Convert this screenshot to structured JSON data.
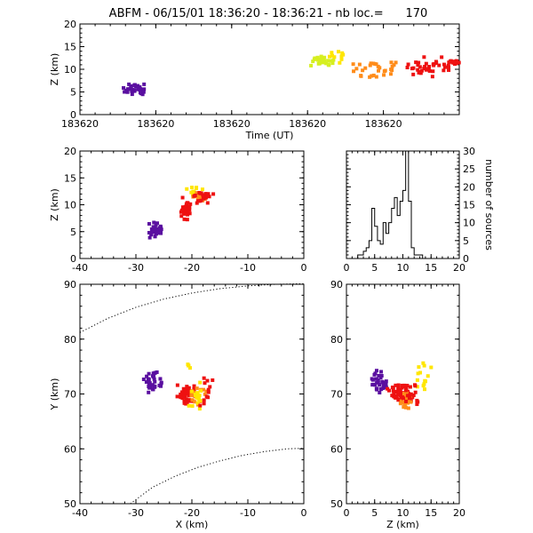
{
  "title": "ABFM - 06/15/01 18:36:20 - 18:36:21 - nb loc.=      170",
  "colors": {
    "purple": "#5a0fa0",
    "red": "#ee1111",
    "orange": "#ff8c1a",
    "yellow": "#ffe600",
    "yellowgreen": "#d6ef20",
    "line": "#000000"
  },
  "chart_data": [
    {
      "id": "time_height",
      "type": "scatter",
      "xlabel": "Time (UT)",
      "ylabel": "Z (km)",
      "xlim": [
        0,
        1
      ],
      "ylim": [
        0,
        20
      ],
      "xticks": [
        0,
        0.2,
        0.4,
        0.6,
        0.8
      ],
      "xtick_labels": [
        "183620",
        "183620",
        "183620",
        "183620",
        "183620"
      ],
      "yticks": [
        0,
        5,
        10,
        15,
        20
      ],
      "clusters": [
        {
          "color": "purple",
          "x": [
            0.1,
            0.19
          ],
          "y": [
            4.0,
            7.0
          ],
          "n": 34
        },
        {
          "color": "yellowgreen",
          "x": [
            0.6,
            0.68
          ],
          "y": [
            10.5,
            13.0
          ],
          "n": 28
        },
        {
          "color": "yellow",
          "x": [
            0.65,
            0.72
          ],
          "y": [
            11.0,
            14.5
          ],
          "n": 10
        },
        {
          "color": "orange",
          "x": [
            0.7,
            0.85
          ],
          "y": [
            8.0,
            12.5
          ],
          "n": 30
        },
        {
          "color": "red",
          "x": [
            0.85,
            1.0
          ],
          "y": [
            7.5,
            13.0
          ],
          "n": 40
        },
        {
          "color": "red",
          "x": [
            0.97,
            1.0
          ],
          "y": [
            11.0,
            12.0
          ],
          "n": 12
        }
      ]
    },
    {
      "id": "x_height",
      "type": "scatter",
      "xlabel": "",
      "ylabel": "Z (km)",
      "xlim": [
        -40,
        0
      ],
      "ylim": [
        0,
        20
      ],
      "xticks": [
        -40,
        -30,
        -20,
        -10,
        0
      ],
      "yticks": [
        0,
        5,
        10,
        15,
        20
      ],
      "clusters": [
        {
          "color": "purple",
          "x": [
            -28,
            -25
          ],
          "y": [
            3.5,
            7.0
          ],
          "n": 34
        },
        {
          "color": "red",
          "x": [
            -22,
            -20
          ],
          "y": [
            7.0,
            12.0
          ],
          "n": 34
        },
        {
          "color": "yellow",
          "x": [
            -21,
            -18
          ],
          "y": [
            11.0,
            13.5
          ],
          "n": 12
        },
        {
          "color": "orange",
          "x": [
            -20,
            -17
          ],
          "y": [
            10.0,
            12.5
          ],
          "n": 16
        },
        {
          "color": "red",
          "x": [
            -20,
            -16
          ],
          "y": [
            10.0,
            13.0
          ],
          "n": 24
        }
      ]
    },
    {
      "id": "height_histogram",
      "type": "bar",
      "xlabel": "",
      "ylabel": "number of sources",
      "xlim": [
        0,
        20
      ],
      "ylim": [
        0,
        30
      ],
      "xticks": [
        0,
        5,
        10,
        15,
        20
      ],
      "yticks": [
        0,
        5,
        10,
        15,
        20,
        25,
        30
      ],
      "bin_width": 0.5,
      "bin_start": 2,
      "values": [
        1,
        1,
        2,
        3,
        5,
        14,
        9,
        5,
        4,
        10,
        7,
        10,
        14,
        17,
        12,
        16,
        19,
        30,
        16,
        3,
        1,
        1,
        1
      ]
    },
    {
      "id": "plan_view",
      "type": "scatter",
      "xlabel": "X (km)",
      "ylabel": "Y (km)",
      "xlim": [
        -40,
        0
      ],
      "ylim": [
        50,
        90
      ],
      "xticks": [
        -40,
        -30,
        -20,
        -10,
        0
      ],
      "yticks": [
        50,
        60,
        70,
        80,
        90
      ],
      "arcs": [
        {
          "x": [
            -40,
            -35,
            -30,
            -25,
            -20,
            -15,
            -10,
            -5,
            0
          ],
          "y": [
            81.2,
            83.8,
            85.8,
            87.3,
            88.4,
            89.2,
            89.7,
            90.0,
            90.1
          ]
        },
        {
          "x": [
            -31,
            -27,
            -23,
            -19,
            -15,
            -11,
            -7,
            -3,
            0
          ],
          "y": [
            50.0,
            53.0,
            55.0,
            56.6,
            57.8,
            58.8,
            59.5,
            60.0,
            60.1
          ]
        }
      ],
      "clusters": [
        {
          "color": "purple",
          "x": [
            -29,
            -25
          ],
          "y": [
            70.0,
            74.5
          ],
          "n": 34
        },
        {
          "color": "red",
          "x": [
            -23,
            -19
          ],
          "y": [
            68.0,
            72.0
          ],
          "n": 46
        },
        {
          "color": "orange",
          "x": [
            -21,
            -17
          ],
          "y": [
            68.0,
            71.5
          ],
          "n": 18
        },
        {
          "color": "yellow",
          "x": [
            -21,
            -17
          ],
          "y": [
            67.0,
            72.5
          ],
          "n": 16
        },
        {
          "color": "yellow",
          "x": [
            -21,
            -20
          ],
          "y": [
            74.0,
            76.5
          ],
          "n": 4
        },
        {
          "color": "red",
          "x": [
            -19,
            -16
          ],
          "y": [
            67.0,
            73.5
          ],
          "n": 12
        }
      ]
    },
    {
      "id": "z_plan",
      "type": "scatter",
      "xlabel": "Z (km)",
      "ylabel": "",
      "xlim": [
        0,
        20
      ],
      "ylim": [
        50,
        90
      ],
      "xticks": [
        0,
        5,
        10,
        15,
        20
      ],
      "yticks": [
        50,
        60,
        70,
        80,
        90
      ],
      "clusters": [
        {
          "color": "purple",
          "x": [
            4.0,
            7.5
          ],
          "y": [
            70.0,
            74.5
          ],
          "n": 34
        },
        {
          "color": "red",
          "x": [
            7.0,
            12.0
          ],
          "y": [
            68.5,
            72.0
          ],
          "n": 60
        },
        {
          "color": "orange",
          "x": [
            9.0,
            12.0
          ],
          "y": [
            67.0,
            70.5
          ],
          "n": 18
        },
        {
          "color": "yellow",
          "x": [
            11.5,
            15.5
          ],
          "y": [
            70.0,
            76.5
          ],
          "n": 14
        },
        {
          "color": "red",
          "x": [
            10.0,
            13.0
          ],
          "y": [
            67.5,
            72.0
          ],
          "n": 16
        }
      ]
    }
  ]
}
